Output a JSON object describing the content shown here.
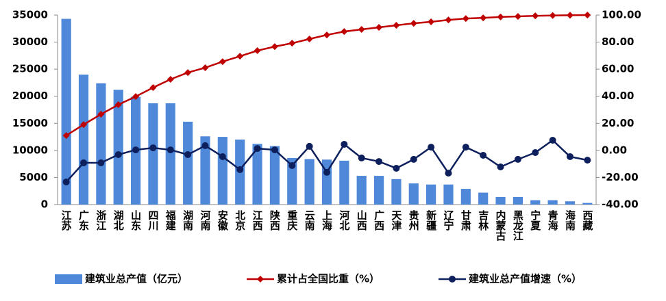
{
  "chart_data": {
    "type": "bar",
    "categories": [
      "江苏",
      "广东",
      "浙江",
      "湖北",
      "山东",
      "四川",
      "福建",
      "湖南",
      "河南",
      "安徽",
      "北京",
      "江西",
      "陕西",
      "重庆",
      "云南",
      "上海",
      "河北",
      "山西",
      "广西",
      "天津",
      "贵州",
      "新疆",
      "辽宁",
      "甘肃",
      "吉林",
      "内蒙古",
      "黑龙江",
      "宁夏",
      "青海",
      "海南",
      "西藏"
    ],
    "series": [
      {
        "name": "建筑业总产值（亿元）",
        "type": "bar",
        "color": "#4f88d8",
        "values": [
          34300,
          24000,
          22400,
          21200,
          19900,
          18700,
          18700,
          15300,
          12600,
          12500,
          12000,
          11200,
          10800,
          8600,
          8400,
          8300,
          8100,
          5300,
          5300,
          4700,
          3900,
          3700,
          3700,
          2900,
          2200,
          1400,
          1400,
          800,
          800,
          600,
          300
        ]
      },
      {
        "name": "累计占全国比重（%）",
        "type": "line",
        "axis": "y2",
        "color": "#c00000",
        "marker": "diamond",
        "values": [
          11.0,
          19.1,
          26.7,
          33.8,
          39.8,
          46.4,
          52.5,
          57.5,
          61.1,
          65.6,
          69.6,
          73.7,
          76.7,
          79.2,
          82.3,
          85.3,
          87.8,
          89.4,
          90.9,
          92.4,
          93.9,
          95.0,
          96.4,
          97.4,
          97.9,
          98.6,
          99.0,
          99.4,
          99.7,
          99.9,
          100
        ]
      },
      {
        "name": "建筑业总产值增速（%）",
        "type": "line",
        "axis": "y2",
        "color": "#0d1f5c",
        "marker": "circle",
        "values": [
          -23.3,
          -9.2,
          -9.2,
          -3.1,
          0.4,
          1.9,
          0.4,
          -3.1,
          3.5,
          -4.6,
          -14.2,
          1.4,
          0.4,
          -11.2,
          3.0,
          -16.2,
          4.5,
          -5.6,
          -8.2,
          -13.2,
          -6.6,
          2.4,
          -16.8,
          2.4,
          -3.6,
          -12.2,
          -6.6,
          -1.6,
          7.5,
          -4.6,
          -7.2
        ]
      }
    ],
    "ylim": [
      0,
      35000
    ],
    "yticks": [
      0,
      5000,
      10000,
      15000,
      20000,
      25000,
      30000,
      35000
    ],
    "y2lim": [
      -40,
      100
    ],
    "y2ticks": [
      {
        "value": -40,
        "label": "-40.00"
      },
      {
        "value": -20,
        "label": "-20.00"
      },
      {
        "value": 0,
        "label": "0.00"
      },
      {
        "value": 20,
        "label": "20.00"
      },
      {
        "value": 40,
        "label": "40.00"
      },
      {
        "value": 60,
        "label": "60.00"
      },
      {
        "value": 80,
        "label": "80.00"
      },
      {
        "value": 100,
        "label": "100.00"
      }
    ],
    "grid": false,
    "legend": "bottom"
  }
}
